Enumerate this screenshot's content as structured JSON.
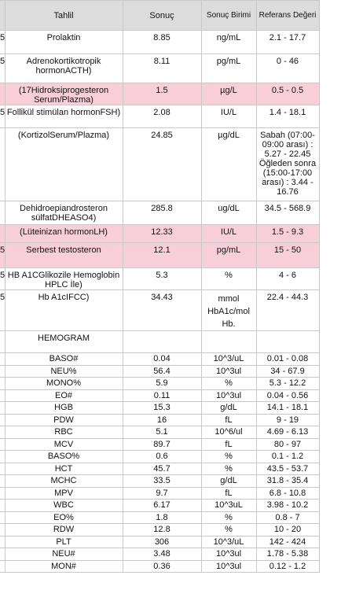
{
  "table": {
    "header": [
      "Tahlil",
      "Sonuç",
      "Sonuç Birimi",
      "Referans Değeri"
    ],
    "highlighted_rows": [
      2,
      6,
      7
    ],
    "rows": [
      {
        "edge": "5",
        "cells": [
          "Prolaktin",
          "8.85",
          "ng/mL",
          "2.1 - 17.7"
        ]
      },
      {
        "edge": "5",
        "cells": [
          "Adrenokortikotropik hormonACTH)",
          "8.11",
          "pg/mL",
          "0 - 46"
        ]
      },
      {
        "cells": [
          "(17Hidroksiprogesteron Serum/Plazma)",
          "1.5",
          "µg/L",
          "0.5 - 0.5"
        ]
      },
      {
        "edge": "5",
        "cells": [
          "Follikül stimülan hormonFSH)",
          "2.08",
          "IU/L",
          "1.4 - 18.1"
        ]
      },
      {
        "cells": [
          "(KortizolSerum/Plazma)",
          "24.85",
          "µg/dL",
          "Sabah (07:00-09:00 arası) : 5.27 - 22.45 Öğleden sonra (15:00-17:00 arası) : 3.44 - 16.76"
        ]
      },
      {
        "cells": [
          "Dehidroepiandrosteron sülfatDHEASO4)",
          "285.8",
          "ug/dL",
          "34.5 - 568.9"
        ]
      },
      {
        "cells": [
          "(Lüteinizan hormonLH)",
          "12.33",
          "IU/L",
          "1.5 - 9.3"
        ]
      },
      {
        "edge": "5",
        "cells": [
          "Serbest testosteron",
          "12.1",
          "pg/mL",
          "15 - 50"
        ]
      },
      {
        "edge": "5",
        "cells": [
          "HB A1CGlikozile Hemoglobin HPLC İle)",
          "5.3",
          "%",
          "4 - 6"
        ]
      },
      {
        "edge": "5",
        "cells": [
          "Hb A1cIFCC)",
          "34.43",
          "mmol HbA1c/mol Hb.",
          "22.4 - 44.3"
        ]
      },
      {
        "cells": [
          "HEMOGRAM"
        ]
      },
      {
        "cells": [
          "BASO#",
          "0.04",
          "10^3/uL",
          "0.01 - 0.08"
        ]
      },
      {
        "cells": [
          "NEU%",
          "56.4",
          "10^3ul",
          "34 - 67.9"
        ]
      },
      {
        "cells": [
          "MONO%",
          "5.9",
          "%",
          "5.3 - 12.2"
        ]
      },
      {
        "cells": [
          "EO#",
          "0.11",
          "10^3ul",
          "0.04 - 0.56"
        ]
      },
      {
        "cells": [
          "HGB",
          "15.3",
          "g/dL",
          "14.1 - 18.1"
        ]
      },
      {
        "cells": [
          "PDW",
          "16",
          "fL",
          "9 - 19"
        ]
      },
      {
        "cells": [
          "RBC",
          "5.1",
          "10^6/ul",
          "4.69 - 6.13"
        ]
      },
      {
        "cells": [
          "MCV",
          "89.7",
          "fL",
          "80 - 97"
        ]
      },
      {
        "cells": [
          "BASO%",
          "0.6",
          "%",
          "0.1 - 1.2"
        ]
      },
      {
        "cells": [
          "HCT",
          "45.7",
          "%",
          "43.5 - 53.7"
        ]
      },
      {
        "cells": [
          "MCHC",
          "33.5",
          "g/dL",
          "31.8 - 35.4"
        ]
      },
      {
        "cells": [
          "MPV",
          "9.7",
          "fL",
          "6.8 - 10.8"
        ]
      },
      {
        "cells": [
          "WBC",
          "6.17",
          "10^3uL",
          "3.98 - 10.2"
        ]
      },
      {
        "cells": [
          "EO%",
          "1.8",
          "%",
          "0.8 - 7"
        ]
      },
      {
        "cells": [
          "RDW",
          "12.8",
          "%",
          "10 - 20"
        ]
      },
      {
        "cells": [
          "PLT",
          "306",
          "10^3/uL",
          "142 - 424"
        ]
      },
      {
        "cells": [
          "NEU#",
          "3.48",
          "10^3ul",
          "1.78 - 5.38"
        ]
      },
      {
        "cells": [
          "MON#",
          "0.36",
          "10^3ul",
          "0.12 - 1.2"
        ]
      }
    ]
  }
}
